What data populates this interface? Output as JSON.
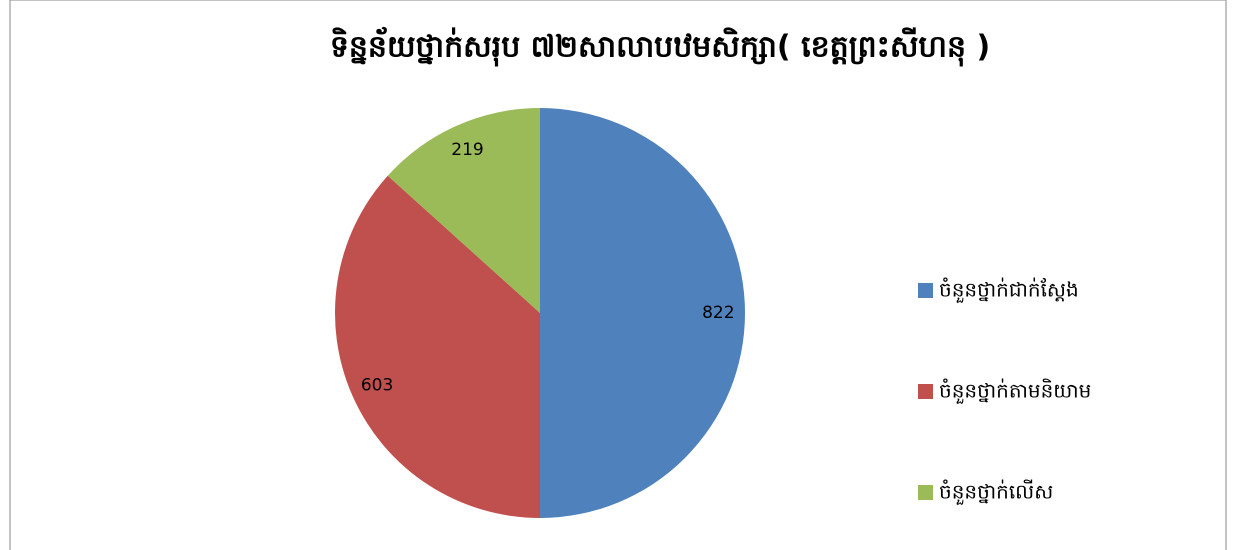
{
  "chart_data": {
    "type": "pie",
    "title": "ទិន្នន័យថ្នាក់សរុប ៧២សាលាបឋមសិក្សា( ខេត្តព្រះសីហនុ )",
    "categories": [
      "ចំនួនថ្នាក់ជាក់ស្តែង",
      "ចំនួនថ្នាក់តាមនិយាម",
      "ចំនួនថ្នាក់លើស"
    ],
    "values": [
      822,
      603,
      219
    ],
    "colors": [
      "#4f81bd",
      "#c0504d",
      "#9bbb59"
    ],
    "legend": "right"
  }
}
